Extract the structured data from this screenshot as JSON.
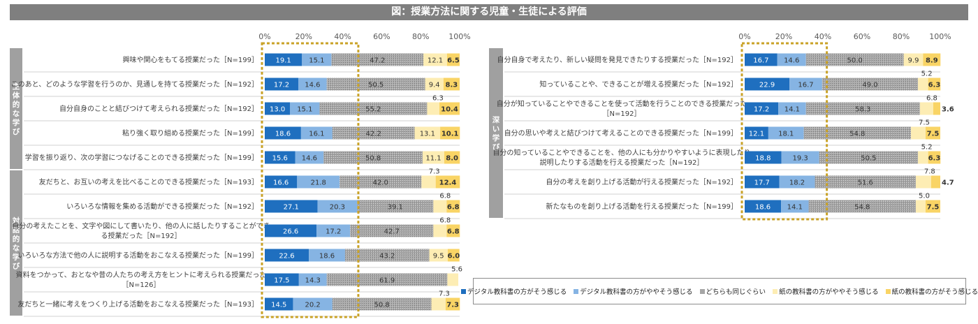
{
  "title": "図：授業方法に関する児童・生徒による評価",
  "colors": {
    "digital_strong": "#1f6fbf",
    "digital_some": "#86b4e3",
    "same": "#a6a6a6",
    "paper_some": "#fdedb4",
    "paper_strong": "#f9d465",
    "group_band": "#a0a0a0",
    "highlight": "#c9a227"
  },
  "legend": [
    {
      "label": "デジタル教科書の方がそう感じる",
      "color_key": "digital_strong"
    },
    {
      "label": "デジタル教科書の方がややそう感じる",
      "color_key": "digital_some"
    },
    {
      "label": "どちらも同じぐらい",
      "color_key": "same"
    },
    {
      "label": "紙の教科書の方がややそう感じる",
      "color_key": "paper_some"
    },
    {
      "label": "紙の教科書の方がそう感じる",
      "color_key": "paper_strong"
    }
  ],
  "chart_data": [
    {
      "type": "bar",
      "orientation": "horizontal",
      "stacked": true,
      "xlim": [
        0,
        100
      ],
      "xticks": [
        "0%",
        "20%",
        "40%",
        "60%",
        "80%",
        "100%"
      ],
      "series_names": [
        "デジタル教科書の方がそう感じる",
        "デジタル教科書の方がややそう感じる",
        "どちらも同じぐらい",
        "紙の教科書の方がややそう感じる",
        "紙の教科書の方がそう感じる"
      ],
      "groups": [
        {
          "label": "主体的な学び",
          "start": 0,
          "count": 5
        },
        {
          "label": "対話的な学び",
          "start": 5,
          "count": 6
        }
      ],
      "rows": [
        {
          "label": [
            "興味や関心をもてる授業だった［N=199］"
          ],
          "values": [
            19.1,
            15.1,
            47.2,
            12.1,
            6.5
          ]
        },
        {
          "label": [
            "このあと、どのような学習を行うのか、見通しを持てる授業だった［N=192］"
          ],
          "values": [
            17.2,
            14.6,
            50.5,
            9.4,
            8.3
          ]
        },
        {
          "label": [
            "自分自身のことと結びつけて考えられる授業だった［N=192］"
          ],
          "values": [
            13.0,
            15.1,
            55.2,
            6.3,
            10.4
          ]
        },
        {
          "label": [
            "粘り強く取り組める授業だった［N=199］"
          ],
          "values": [
            18.6,
            16.1,
            42.2,
            13.1,
            10.1
          ]
        },
        {
          "label": [
            "学習を振り返り、次の学習につなげることのできる授業だった［N=199］"
          ],
          "values": [
            15.6,
            14.6,
            50.8,
            11.1,
            8.0
          ]
        },
        {
          "label": [
            "友だちと、お互いの考えを比べることのできる授業だった［N=193］"
          ],
          "values": [
            16.6,
            21.8,
            42.0,
            7.3,
            12.4
          ]
        },
        {
          "label": [
            "いろいろな情報を集める活動ができる授業だった［N=192］"
          ],
          "values": [
            27.1,
            20.3,
            39.1,
            6.8,
            6.8
          ]
        },
        {
          "label": [
            "自分の考えたことを、文字や図にして書いたり、他の人に話したりすることができ",
            "る授業だった［N=192］"
          ],
          "values": [
            26.6,
            17.2,
            42.7,
            6.8,
            6.8
          ]
        },
        {
          "label": [
            "いろいろな方法で他の人に説明する活動をおこなえる授業だった［N=199］"
          ],
          "values": [
            22.6,
            18.6,
            43.2,
            9.5,
            6.0
          ]
        },
        {
          "label": [
            "資料をつかって、おとなや昔の人たちの考え方をヒントに考えられる授業だった",
            "［N=126］"
          ],
          "values": [
            17.5,
            14.3,
            61.9,
            5.6,
            0
          ]
        },
        {
          "label": [
            "友だちと一緒に考えをつくり上げる活動をおこなえる授業だった［N=193］"
          ],
          "values": [
            14.5,
            20.2,
            50.8,
            7.3,
            7.3
          ]
        }
      ]
    },
    {
      "type": "bar",
      "orientation": "horizontal",
      "stacked": true,
      "xlim": [
        0,
        100
      ],
      "xticks": [
        "0%",
        "20%",
        "40%",
        "60%",
        "80%",
        "100%"
      ],
      "series_names": [
        "デジタル教科書の方がそう感じる",
        "デジタル教科書の方がややそう感じる",
        "どちらも同じぐらい",
        "紙の教科書の方がややそう感じる",
        "紙の教科書の方がそう感じる"
      ],
      "groups": [
        {
          "label": "深い学び",
          "start": 0,
          "count": 7
        }
      ],
      "rows": [
        {
          "label": [
            "自分自身で考えたり、新しい疑問を発見できたりする授業だった［N=192］"
          ],
          "values": [
            16.7,
            14.6,
            50.0,
            9.9,
            8.9
          ]
        },
        {
          "label": [
            "知っていることや、できることが増える授業だった［N=192］"
          ],
          "values": [
            22.9,
            16.7,
            49.0,
            5.2,
            6.3
          ]
        },
        {
          "label": [
            "自分が知っていることやできることを使って活動を行うことのできる授業だった",
            "［N=192］"
          ],
          "values": [
            17.2,
            14.1,
            58.3,
            6.8,
            3.6
          ]
        },
        {
          "label": [
            "自分の思いや考えと結びつけて考えることのできる授業だった［N=199］"
          ],
          "values": [
            12.1,
            18.1,
            54.8,
            7.5,
            7.5
          ]
        },
        {
          "label": [
            "自分の知っていることやできることを、他の人にも分かりやすいように表現したり",
            "説明したりする活動を行える授業だった［N=192］"
          ],
          "values": [
            18.8,
            19.3,
            50.5,
            5.2,
            6.3
          ]
        },
        {
          "label": [
            "自分の考えを創り上げる活動が行える授業だった［N=192］"
          ],
          "values": [
            17.7,
            18.2,
            51.6,
            7.8,
            4.7
          ]
        },
        {
          "label": [
            "新たなものを創り上げる活動を行える授業だった［N=199］"
          ],
          "values": [
            18.6,
            14.1,
            54.8,
            5.0,
            7.5
          ]
        }
      ]
    }
  ]
}
